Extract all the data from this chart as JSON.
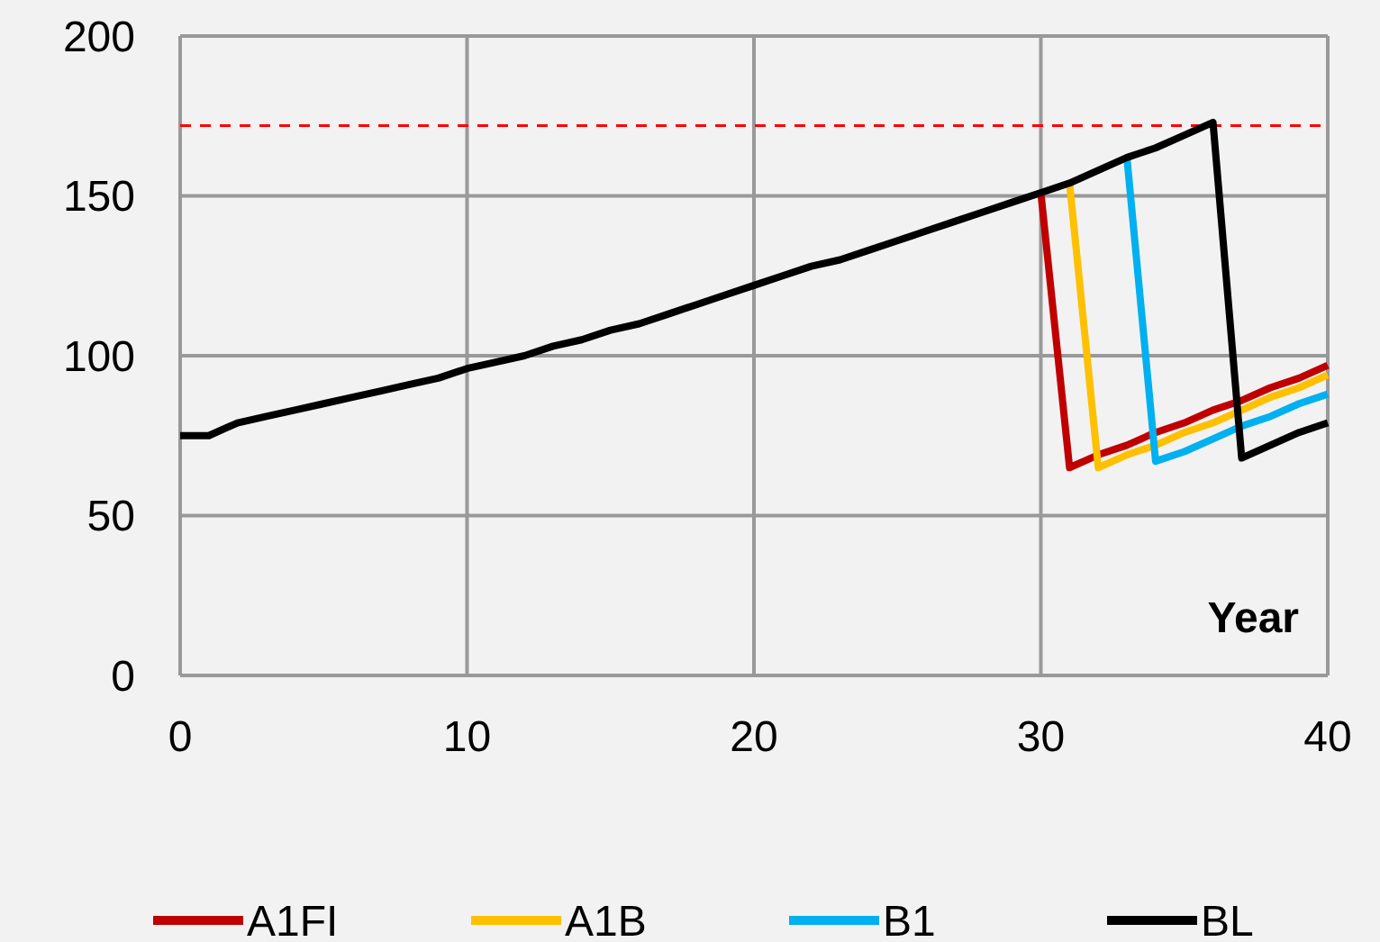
{
  "chart_data": {
    "type": "line",
    "xlabel": "Year",
    "x": [
      0,
      1,
      2,
      3,
      4,
      5,
      6,
      7,
      8,
      9,
      10,
      11,
      12,
      13,
      14,
      15,
      16,
      17,
      18,
      19,
      20,
      21,
      22,
      23,
      24,
      25,
      26,
      27,
      28,
      29,
      30,
      31,
      32,
      33,
      34,
      35,
      36,
      37,
      38,
      39,
      40
    ],
    "series": [
      {
        "name": "A1FI",
        "color": "#c00000",
        "values": [
          null,
          null,
          null,
          null,
          null,
          null,
          null,
          null,
          null,
          null,
          null,
          null,
          null,
          null,
          null,
          null,
          null,
          null,
          null,
          null,
          null,
          null,
          null,
          null,
          null,
          null,
          null,
          null,
          null,
          null,
          151,
          65,
          69,
          72,
          76,
          79,
          83,
          86,
          90,
          93,
          97
        ]
      },
      {
        "name": "A1B",
        "color": "#ffc000",
        "values": [
          null,
          null,
          null,
          null,
          null,
          null,
          null,
          null,
          null,
          null,
          null,
          null,
          null,
          null,
          null,
          null,
          null,
          null,
          null,
          null,
          null,
          null,
          null,
          null,
          null,
          null,
          null,
          null,
          null,
          null,
          null,
          154,
          65,
          69,
          72,
          76,
          79,
          83,
          87,
          90,
          94
        ]
      },
      {
        "name": "B1",
        "color": "#00b0f0",
        "values": [
          null,
          null,
          null,
          null,
          null,
          null,
          null,
          null,
          null,
          null,
          null,
          null,
          null,
          null,
          null,
          null,
          null,
          null,
          null,
          null,
          null,
          null,
          null,
          null,
          null,
          null,
          null,
          null,
          null,
          null,
          null,
          null,
          null,
          162,
          67,
          70,
          74,
          78,
          81,
          85,
          88
        ]
      },
      {
        "name": "BL",
        "color": "#000000",
        "values": [
          75,
          75,
          79,
          81,
          83,
          85,
          87,
          89,
          91,
          93,
          96,
          98,
          100,
          103,
          105,
          108,
          110,
          113,
          116,
          119,
          122,
          125,
          128,
          130,
          133,
          136,
          139,
          142,
          145,
          148,
          151,
          154,
          158,
          162,
          165,
          169,
          173,
          68,
          72,
          76,
          79
        ]
      }
    ],
    "xlim": [
      0,
      40
    ],
    "xticks": [
      0,
      10,
      20,
      30,
      40
    ],
    "ylim": [
      0,
      200
    ],
    "yticks": [
      0,
      50,
      100,
      150,
      200
    ],
    "grid": true,
    "legend": "bottom",
    "line_style": "solid",
    "ref_lines": [
      {
        "axis": "y",
        "value": 172,
        "color": "#ff0000",
        "line_style": "dashed"
      }
    ]
  }
}
